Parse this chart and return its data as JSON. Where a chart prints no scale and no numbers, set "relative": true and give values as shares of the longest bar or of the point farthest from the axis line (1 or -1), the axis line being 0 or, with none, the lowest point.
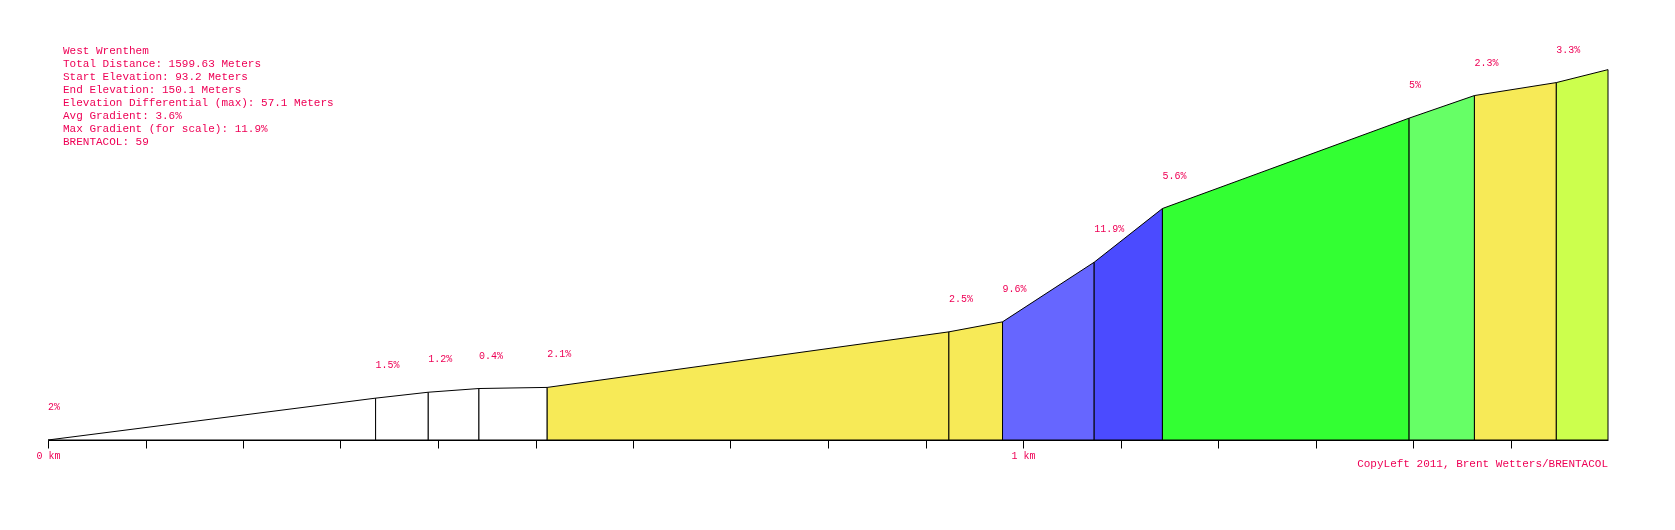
{
  "chart_data": {
    "type": "area",
    "relative": true,
    "title": "West Wrenthem",
    "series": [
      {
        "color": "#ffffff",
        "x": [
          0,
          0.336
        ],
        "values": [
          0,
          0.113
        ]
      },
      {
        "color": "#ffffff",
        "x": [
          0.336,
          0.39
        ],
        "values": [
          0.113,
          0.129
        ]
      },
      {
        "color": "#ffffff",
        "x": [
          0.39,
          0.442
        ],
        "values": [
          0.129,
          0.139
        ]
      },
      {
        "color": "#ffffff",
        "x": [
          0.442,
          0.512
        ],
        "values": [
          0.139,
          0.142
        ]
      },
      {
        "color": "#f7ea57",
        "x": [
          0.512,
          0.924
        ],
        "values": [
          0.142,
          0.292
        ]
      },
      {
        "color": "#f7ea57",
        "x": [
          0.924,
          0.979
        ],
        "values": [
          0.292,
          0.319
        ]
      },
      {
        "color": "#6666ff",
        "x": [
          0.979,
          1.073
        ],
        "values": [
          0.319,
          0.48
        ]
      },
      {
        "color": "#4b4bff",
        "x": [
          1.073,
          1.143
        ],
        "values": [
          0.48,
          0.625
        ]
      },
      {
        "color": "#33ff33",
        "x": [
          1.143,
          1.396
        ],
        "values": [
          0.625,
          0.869
        ]
      },
      {
        "color": "#66ff66",
        "x": [
          1.396,
          1.463
        ],
        "values": [
          0.869,
          0.93
        ]
      },
      {
        "color": "#f7ea57",
        "x": [
          1.463,
          1.547
        ],
        "values": [
          0.93,
          0.965
        ]
      },
      {
        "color": "#ccff4d",
        "x": [
          1.547,
          1.6
        ],
        "values": [
          0.965,
          1
        ]
      }
    ],
    "xlim": [
      0,
      1.6
    ],
    "xticks": [
      {
        "value": 0,
        "label": "0 km"
      },
      {
        "value": 0.1,
        "label": null
      },
      {
        "value": 0.2,
        "label": null
      },
      {
        "value": 0.3,
        "label": null
      },
      {
        "value": 0.4,
        "label": null
      },
      {
        "value": 0.5,
        "label": null
      },
      {
        "value": 0.6,
        "label": null
      },
      {
        "value": 0.7,
        "label": null
      },
      {
        "value": 0.8,
        "label": null
      },
      {
        "value": 0.9,
        "label": null
      },
      {
        "value": 1,
        "label": "1 km"
      },
      {
        "value": 1.1,
        "label": null
      },
      {
        "value": 1.2,
        "label": null
      },
      {
        "value": 1.3,
        "label": null
      },
      {
        "value": 1.4,
        "label": null
      },
      {
        "value": 1.5,
        "label": null
      }
    ],
    "grid": false,
    "annotations": [
      "Total Distance: 1599.63 Meters",
      "Start Elevation: 93.2 Meters",
      "End Elevation: 150.1 Meters",
      "Elevation Differential (max): 57.1 Meters",
      "Avg Gradient: 3.6%",
      "Max Gradient (for scale): 11.9%",
      "BRENTACOL: 59",
      {
        "text": "2%",
        "x": 0,
        "y": 0
      },
      {
        "text": "1.5%",
        "x": 0.336,
        "y": 0.113
      },
      {
        "text": "1.2%",
        "x": 0.39,
        "y": 0.129
      },
      {
        "text": "0.4%",
        "x": 0.442,
        "y": 0.139
      },
      {
        "text": "2.1%",
        "x": 0.512,
        "y": 0.142
      },
      {
        "text": "2.5%",
        "x": 0.924,
        "y": 0.292
      },
      {
        "text": "9.6%",
        "x": 0.979,
        "y": 0.319
      },
      {
        "text": "11.9%",
        "x": 1.073,
        "y": 0.48
      },
      {
        "text": "5.6%",
        "x": 1.143,
        "y": 0.625
      },
      {
        "text": "5%",
        "x": 1.396,
        "y": 0.869
      },
      {
        "text": "2.3%",
        "x": 1.463,
        "y": 0.93
      },
      {
        "text": "3.3%",
        "x": 1.547,
        "y": 0.965
      },
      "CopyLeft 2011, Brent Wetters/BRENTACOL"
    ]
  }
}
